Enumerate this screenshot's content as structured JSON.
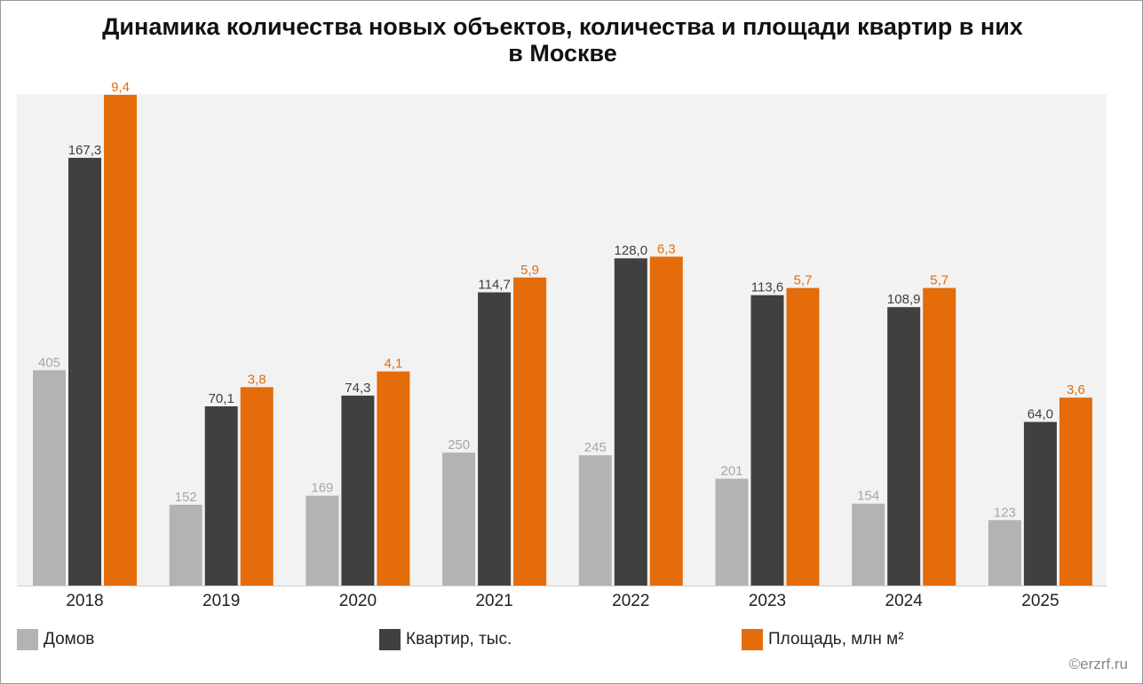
{
  "title": {
    "line1": "Динамика количества новых объектов, количества и площади квартир в них",
    "line2": "в Москве"
  },
  "copyright": "©erzrf.ru",
  "colors": {
    "houses": "#b3b3b3",
    "apartments": "#404040",
    "area": "#e46c0a",
    "plot_bg": "#f2f2f2"
  },
  "chart_data": {
    "type": "bar",
    "categories": [
      "2018",
      "2019",
      "2020",
      "2021",
      "2022",
      "2023",
      "2024",
      "2025"
    ],
    "series": [
      {
        "name": "Домов",
        "values": [
          405,
          152,
          169,
          250,
          245,
          201,
          154,
          123
        ],
        "labels": [
          "405",
          "152",
          "169",
          "250",
          "245",
          "201",
          "154",
          "123"
        ]
      },
      {
        "name": "Квартир, тыс.",
        "values": [
          167.3,
          70.1,
          74.3,
          114.7,
          128.0,
          113.6,
          108.9,
          64.0
        ],
        "labels": [
          "167,3",
          "70,1",
          "74,3",
          "114,7",
          "128,0",
          "113,6",
          "108,9",
          "64,0"
        ]
      },
      {
        "name": "Площадь, млн м²",
        "values": [
          9.4,
          3.8,
          4.1,
          5.9,
          6.3,
          5.7,
          5.7,
          3.6
        ],
        "labels": [
          "9,4",
          "3,8",
          "4,1",
          "5,9",
          "6,3",
          "5,7",
          "5,7",
          "3,6"
        ]
      }
    ],
    "scales": {
      "houses_max": 933,
      "apartments_max": 194,
      "area_max": 9.5
    },
    "legend_position": "bottom",
    "grid": false
  }
}
